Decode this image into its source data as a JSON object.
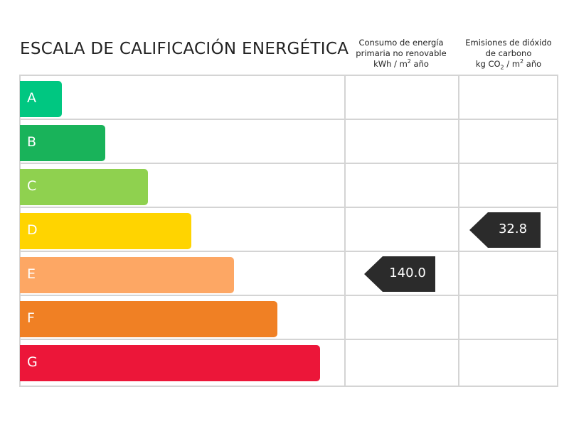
{
  "title": "ESCALA DE CALIFICACIÓN ENERGÉTICA",
  "columns": {
    "consumo": {
      "line1": "Consumo de energía",
      "line2": "primaria no renovable",
      "unit_prefix": "kWh / m",
      "unit_sup": "2",
      "unit_suffix": " año"
    },
    "emisiones": {
      "line1": "Emisiones de dióxido",
      "line2": "de carbono",
      "unit_prefix": "kg CO",
      "unit_sub": "2",
      "unit_mid": " / m",
      "unit_sup": "2",
      "unit_suffix": " año"
    }
  },
  "ratings": [
    {
      "letter": "A",
      "color": "#00c781"
    },
    {
      "letter": "B",
      "color": "#19b35a"
    },
    {
      "letter": "C",
      "color": "#8fd14f"
    },
    {
      "letter": "D",
      "color": "#ffd400"
    },
    {
      "letter": "E",
      "color": "#fda764"
    },
    {
      "letter": "F",
      "color": "#f08024"
    },
    {
      "letter": "G",
      "color": "#ec1639"
    }
  ],
  "consumo_value": {
    "text": "140.0",
    "rating": "E"
  },
  "emisiones_value": {
    "text": "32.8",
    "rating": "D"
  },
  "colors": {
    "tag": "#2b2b2b",
    "grid": "#d4d4d4"
  }
}
